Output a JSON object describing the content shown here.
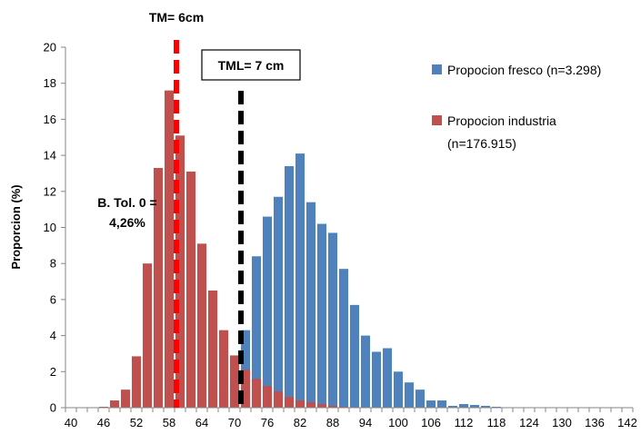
{
  "chart_data": {
    "type": "bar",
    "title": "",
    "xlabel": "",
    "ylabel": "Proporcion (%)",
    "ylim": [
      0,
      20
    ],
    "yticks": [
      0,
      2,
      4,
      6,
      8,
      10,
      12,
      14,
      16,
      18,
      20
    ],
    "x_tick_labels": [
      "40",
      "46",
      "52",
      "58",
      "64",
      "70",
      "76",
      "82",
      "88",
      "94",
      "100",
      "106",
      "112",
      "118",
      "124",
      "130",
      "136",
      "142"
    ],
    "x": [
      40,
      42,
      44,
      46,
      48,
      50,
      52,
      54,
      56,
      58,
      60,
      62,
      64,
      66,
      68,
      70,
      72,
      74,
      76,
      78,
      80,
      82,
      84,
      86,
      88,
      90,
      92,
      94,
      96,
      98,
      100,
      102,
      104,
      106,
      108,
      110,
      112,
      114,
      116,
      118,
      120,
      122,
      124,
      126,
      128,
      130,
      132,
      134,
      136,
      138,
      140,
      142
    ],
    "legend_position": "right",
    "grid": false,
    "series": [
      {
        "name": "Propocion fresco (n=3.298)",
        "color": "#4F81BD",
        "values": [
          0,
          0,
          0,
          0,
          0,
          0,
          0,
          0,
          0,
          0,
          0,
          0,
          0.3,
          0.5,
          0.6,
          1.4,
          4.3,
          8.4,
          10.6,
          11.7,
          13.4,
          14.1,
          11.4,
          10.2,
          9.7,
          7.7,
          5.7,
          4.0,
          3.1,
          3.3,
          2.0,
          1.4,
          1.0,
          0.4,
          0.4,
          0.1,
          0.2,
          0.15,
          0.1,
          0.05,
          0,
          0,
          0,
          0,
          0,
          0,
          0,
          0,
          0,
          0,
          0,
          0
        ]
      },
      {
        "name": "Propocion industria (n=176.915)",
        "color": "#C0504D",
        "values": [
          0,
          0,
          0,
          0.05,
          0.4,
          1.0,
          2.85,
          8.0,
          13.3,
          17.6,
          15.1,
          13.1,
          9.1,
          6.5,
          4.3,
          2.9,
          2.1,
          1.6,
          1.2,
          0.9,
          0.6,
          0.4,
          0.3,
          0.2,
          0.1,
          0.05,
          0.03,
          0,
          0,
          0,
          0,
          0,
          0,
          0,
          0,
          0,
          0,
          0,
          0,
          0,
          0,
          0,
          0,
          0,
          0,
          0,
          0,
          0,
          0,
          0,
          0,
          0
        ]
      }
    ],
    "reference_lines": [
      {
        "label": "TM= 6cm",
        "x": 60,
        "color": "#FF0000",
        "style": "dashed"
      },
      {
        "label": "TML= 7 cm",
        "x": 70,
        "color": "#000000",
        "style": "dashed"
      }
    ],
    "annotations": {
      "btol_line1": "B. Tol. 0 =",
      "btol_line2": "4,26%"
    }
  },
  "legend": {
    "fresco_label": "Propocion fresco (n=3.298)",
    "industria_line1": "Propocion industria",
    "industria_line2": "(n=176.915)"
  }
}
